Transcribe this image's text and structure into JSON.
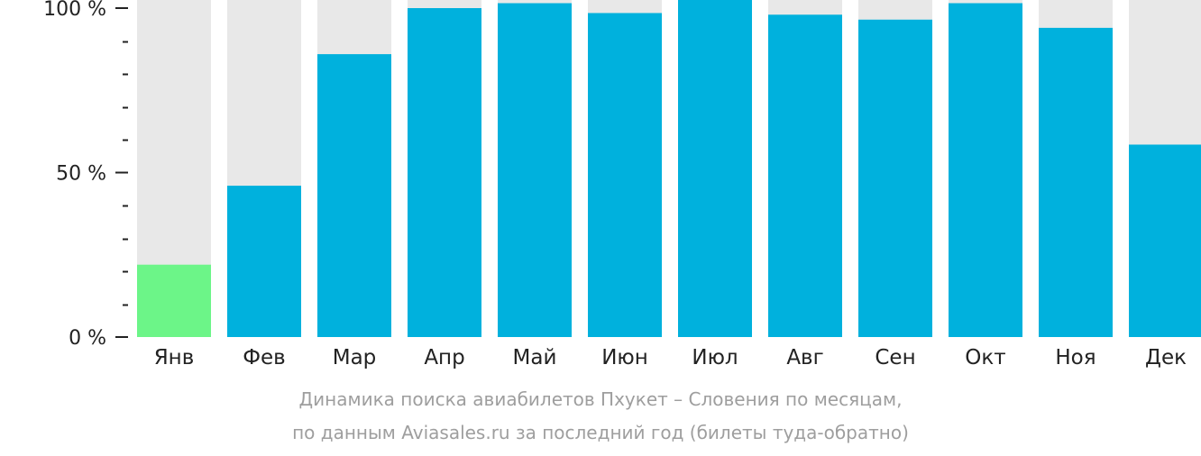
{
  "chart_data": {
    "type": "bar",
    "categories": [
      "Янв",
      "Фев",
      "Мар",
      "Апр",
      "Май",
      "Июн",
      "Июл",
      "Авг",
      "Сен",
      "Окт",
      "Ноя",
      "Дек"
    ],
    "values": [
      22,
      46,
      86,
      100,
      101.5,
      98.5,
      103,
      98,
      96.5,
      101.5,
      94,
      58.5
    ],
    "ylim": [
      0,
      100
    ],
    "y_ticks": [
      {
        "value": 0,
        "label": "0 %"
      },
      {
        "value": 50,
        "label": "50 %"
      },
      {
        "value": 100,
        "label": "100 %"
      }
    ],
    "y_minor_step": 10,
    "grid": false,
    "legend": "none",
    "highlight_index": 0,
    "colors": {
      "bar": "#00b1dd",
      "highlight": "#6cf588",
      "background_column": "#e8e8e8",
      "axis_text": "#222222",
      "caption_text": "#9e9e9e"
    }
  },
  "caption": {
    "line1": "Динамика поиска авиабилетов Пхукет – Словения по месяцам,",
    "line2": "по данным Aviasales.ru за последний год (билеты туда-обратно)"
  }
}
